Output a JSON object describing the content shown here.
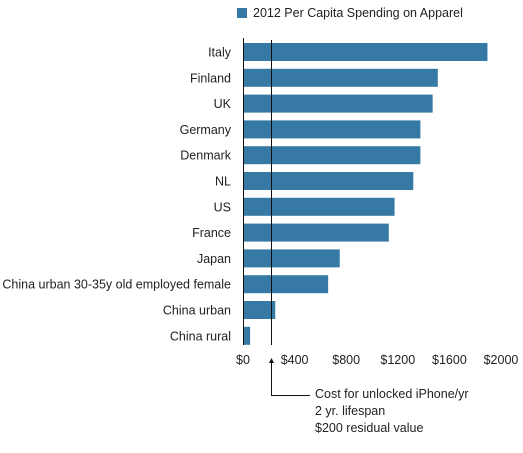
{
  "chart_data": {
    "type": "bar",
    "orientation": "horizontal",
    "categories": [
      "Italy",
      "Finland",
      "UK",
      "Germany",
      "Denmark",
      "NL",
      "US",
      "France",
      "Japan",
      "China urban 30-35y old employed female",
      "China urban",
      "China rural"
    ],
    "series": [
      {
        "name": "2012 Per Capita Spending on Apparel",
        "values": [
          1895,
          1510,
          1470,
          1375,
          1375,
          1320,
          1175,
          1130,
          750,
          660,
          250,
          55
        ],
        "color": "#3579a4"
      }
    ],
    "xlim": [
      0,
      2000
    ],
    "xticks": [
      0,
      400,
      800,
      1200,
      1600,
      2000
    ],
    "xtick_labels": [
      "$0",
      "$400",
      "$800",
      "$1200",
      "$1600",
      "$2000"
    ],
    "grid": false,
    "legend_position": "top",
    "reference_line": {
      "value": 220,
      "lines": [
        "Cost for unlocked iPhone/yr",
        "2 yr. lifespan",
        "$200 residual value"
      ]
    }
  }
}
